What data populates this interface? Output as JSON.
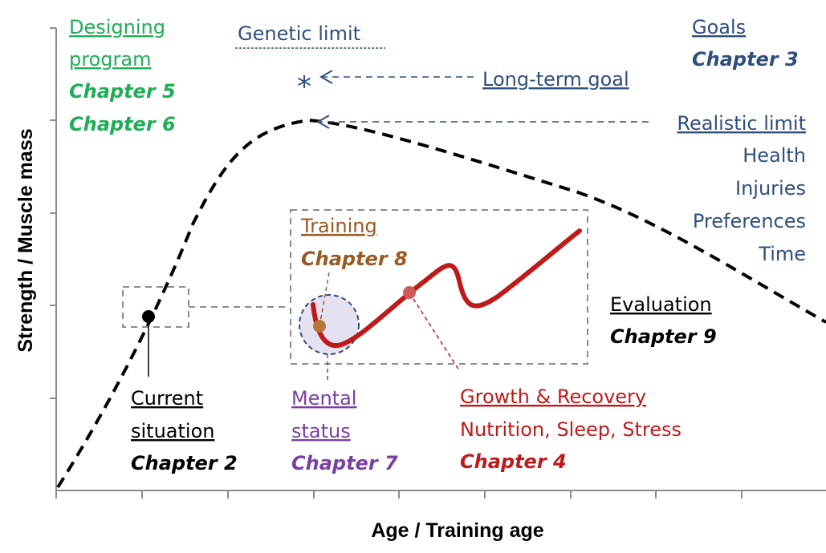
{
  "axes": {
    "xlabel": "Age / Training age",
    "ylabel": "Strength / Muscle mass"
  },
  "colors": {
    "green": "#1fae57",
    "blue": "#2f4f7f",
    "black": "#000000",
    "brown": "#9a5a23",
    "purple": "#7a3fa6",
    "red": "#bf1a1a",
    "grey": "#8c8c8c"
  },
  "labels": {
    "designing": {
      "line1": "Designing",
      "line2": "program",
      "ch1": "Chapter 5",
      "ch2": "Chapter 6"
    },
    "genetic_limit": "Genetic limit",
    "long_term_goal": "Long-term goal",
    "realistic_limit": "Realistic limit",
    "goals": {
      "title": "Goals",
      "chapter": "Chapter 3"
    },
    "constraints": [
      "Health",
      "Injuries",
      "Preferences",
      "Time"
    ],
    "training": {
      "title": "Training",
      "chapter": "Chapter 8"
    },
    "evaluation": {
      "title": "Evaluation",
      "chapter": "Chapter 9"
    },
    "current": {
      "line1": "Current",
      "line2": "situation",
      "chapter": "Chapter 2"
    },
    "mental": {
      "line1": "Mental",
      "line2": "status",
      "chapter": "Chapter 7"
    },
    "growth": {
      "title": "Growth & Recovery",
      "sub": "Nutrition, Sleep, Stress",
      "chapter": "Chapter 4"
    }
  },
  "markers": {
    "long_term_goal_symbol": "*"
  }
}
